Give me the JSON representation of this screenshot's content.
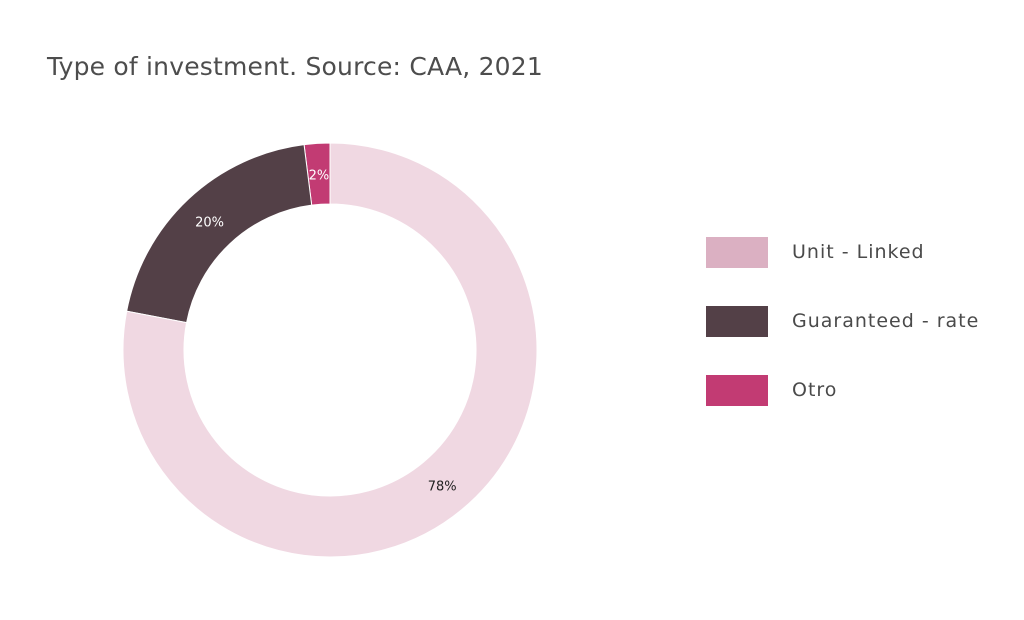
{
  "chart_data": {
    "type": "pie",
    "title": "Type of investment. Source: CAA, 2021",
    "categories": [
      "Unit - Linked",
      "Guaranteed - rate",
      "Otro"
    ],
    "values": [
      78,
      20,
      2
    ],
    "value_labels": [
      "78%",
      "20%",
      "2%"
    ],
    "colors": [
      "#f0d8e2",
      "#534047",
      "#c23b73"
    ],
    "legend_colors": [
      "#dbb0c2",
      "#534047",
      "#c23b73"
    ],
    "label_colors": [
      "#222222",
      "#ffffff",
      "#ffffff"
    ],
    "donut": true,
    "legend_position": "right"
  }
}
